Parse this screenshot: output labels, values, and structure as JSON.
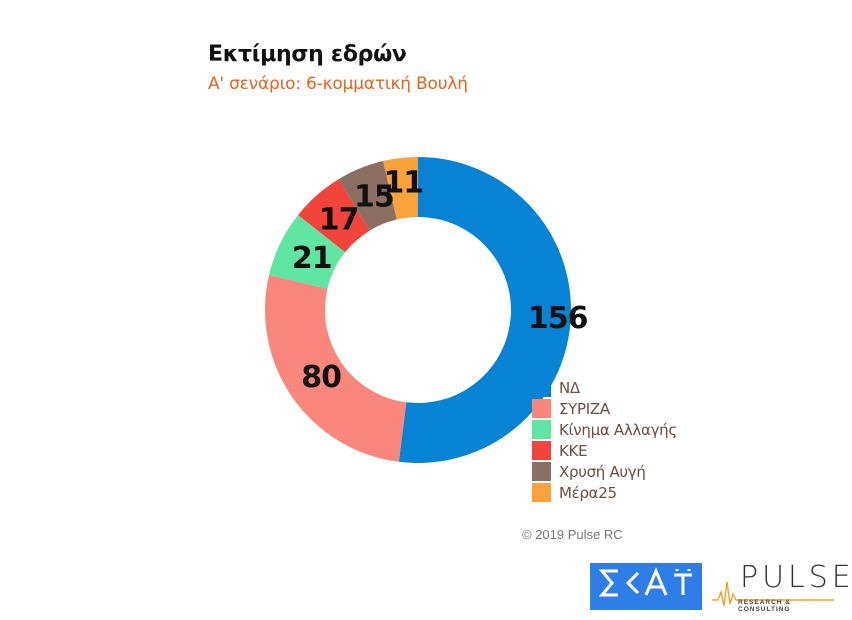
{
  "header": {
    "title": "Εκτίμηση εδρών",
    "subtitle": "Α' σενάριο: 6-κομματική Βουλή"
  },
  "chart_data": {
    "type": "pie",
    "subtype": "donut",
    "title": "Εκτίμηση εδρών",
    "subtitle": "Α' σενάριο: 6-κομματική Βουλή",
    "categories": [
      "ΝΔ",
      "ΣΥΡΙΖΑ",
      "Κίνημα Αλλαγής",
      "ΚΚΕ",
      "Χρυσή Αυγή",
      "Μέρα25"
    ],
    "values": [
      156,
      80,
      21,
      17,
      15,
      11
    ],
    "colors": [
      "#0683d4",
      "#fb877c",
      "#5fe6a3",
      "#f2443b",
      "#8b6f63",
      "#fba23b"
    ],
    "total": 300,
    "start_angle": "12 o'clock",
    "direction": "clockwise",
    "legend_position": "bottom-right",
    "data_labels": [
      "156",
      "80",
      "21",
      "17",
      "15",
      "11"
    ]
  },
  "legend": {
    "items": [
      {
        "label": "ΝΔ",
        "color": "#0683d4"
      },
      {
        "label": "ΣΥΡΙΖΑ",
        "color": "#fb877c"
      },
      {
        "label": "Κίνημα Αλλαγής",
        "color": "#5fe6a3"
      },
      {
        "label": "ΚΚΕ",
        "color": "#f2443b"
      },
      {
        "label": "Χρυσή Αυγή",
        "color": "#8b6f63"
      },
      {
        "label": "Μέρα25",
        "color": "#fba23b"
      }
    ]
  },
  "footer": {
    "copyright": "© 2019 Pulse RC",
    "logo_skai": "ΣΚΑΪ",
    "logo_pulse": "PULSE",
    "logo_pulse_sub": "RESEARCH & CONSULTING"
  }
}
